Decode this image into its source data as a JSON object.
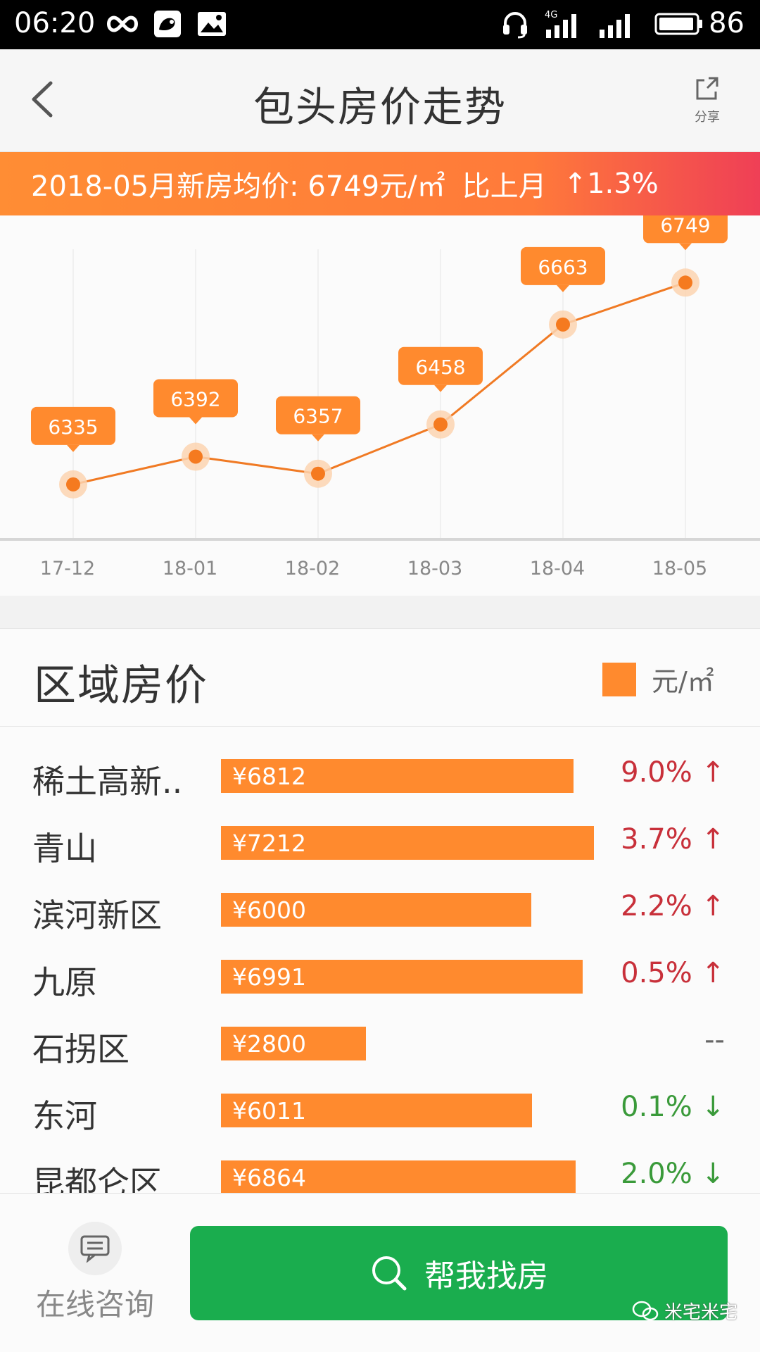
{
  "status_bar": {
    "time": "06:20",
    "battery": "86",
    "icons": [
      "infinity-icon",
      "uc-browser-icon",
      "image-icon",
      "headset-icon",
      "signal-4g-icon",
      "signal-icon",
      "battery-icon"
    ]
  },
  "header": {
    "title": "包头房价走势",
    "share_label": "分享",
    "back_icon": "chevron-left-icon"
  },
  "banner": {
    "label": "2018-05月新房均价: 6749元/㎡",
    "compare": "比上月",
    "change": "↑1.3%"
  },
  "chart_data": {
    "type": "line",
    "categories": [
      "17-12",
      "18-01",
      "18-02",
      "18-03",
      "18-04",
      "18-05"
    ],
    "values": [
      6335,
      6392,
      6357,
      6458,
      6663,
      6749
    ],
    "title": "",
    "xlabel": "",
    "ylabel": "",
    "ylim": [
      6280,
      6800
    ],
    "grid": "vertical",
    "colors": {
      "line": "#f07a24",
      "label_bg": "#ff8a2e"
    }
  },
  "region": {
    "title": "区域房价",
    "legend_unit": "元/㎡",
    "rows": [
      {
        "name": "稀土高新..",
        "price": "¥6812",
        "value": 6812,
        "change": "9.0%",
        "arrow": "↑",
        "dir": "up"
      },
      {
        "name": "青山",
        "price": "¥7212",
        "value": 7212,
        "change": "3.7%",
        "arrow": "↑",
        "dir": "up"
      },
      {
        "name": "滨河新区",
        "price": "¥6000",
        "value": 6000,
        "change": "2.2%",
        "arrow": "↑",
        "dir": "up"
      },
      {
        "name": "九原",
        "price": "¥6991",
        "value": 6991,
        "change": "0.5%",
        "arrow": "↑",
        "dir": "up"
      },
      {
        "name": "石拐区",
        "price": "¥2800",
        "value": 2800,
        "change": "--",
        "arrow": "",
        "dir": "none"
      },
      {
        "name": "东河",
        "price": "¥6011",
        "value": 6011,
        "change": "0.1%",
        "arrow": "↓",
        "dir": "down"
      },
      {
        "name": "昆都仑区",
        "price": "¥6864",
        "value": 6864,
        "change": "2.0%",
        "arrow": "↓",
        "dir": "down"
      }
    ]
  },
  "bottom": {
    "consult_label": "在线咨询",
    "find_label": "帮我找房",
    "watermark": "米宅米宅"
  },
  "colors": {
    "accent": "#ff8a2e",
    "up": "#c8303a",
    "down": "#3a9a3a",
    "flat": "#666666",
    "primary_button": "#1aad4e"
  }
}
